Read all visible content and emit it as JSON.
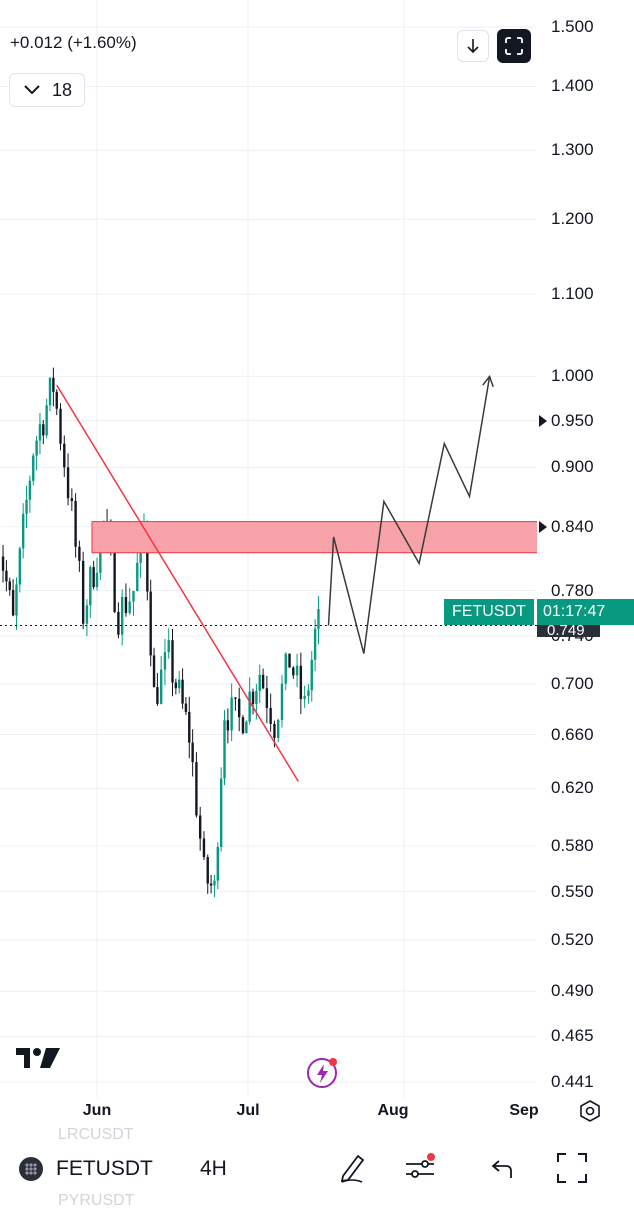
{
  "header": {
    "change": "+0.012 (+1.60%)",
    "interval_count": "18"
  },
  "toolbar": {
    "download_icon": "arrow-down-icon",
    "fullscreen_icon": "fullscreen-icon"
  },
  "price_axis": {
    "labels": [
      "1.500",
      "1.400",
      "1.300",
      "1.200",
      "1.100",
      "1.000",
      "0.950",
      "0.900",
      "0.840",
      "0.780",
      "0.749",
      "0.740",
      "0.700",
      "0.660",
      "0.620",
      "0.580",
      "0.550",
      "0.520",
      "0.490",
      "0.465",
      "0.441"
    ]
  },
  "symbol_tag": {
    "symbol": "FETUSDT",
    "countdown": "01:17:47",
    "price": "0.749"
  },
  "time_axis": {
    "labels": [
      "Jun",
      "Jul",
      "Aug",
      "Sep"
    ]
  },
  "bottom_bar": {
    "symbol": "FETUSDT",
    "interval": "4H",
    "ghost_above": "LRCUSDT",
    "ghost_below": "PYRUSDT"
  },
  "chart_data": {
    "type": "candlestick",
    "symbol": "FETUSDT",
    "interval": "4H",
    "current_price": 0.749,
    "ylim": [
      0.441,
      1.5
    ],
    "x_ticks": [
      "Jun",
      "Jul",
      "Aug",
      "Sep"
    ],
    "price_path_approx": [
      {
        "t": "May 12",
        "p": 0.86
      },
      {
        "t": "May 16",
        "p": 0.75
      },
      {
        "t": "May 20",
        "p": 0.92
      },
      {
        "t": "May 24",
        "p": 0.99
      },
      {
        "t": "May 27",
        "p": 0.88
      },
      {
        "t": "May 30",
        "p": 0.76
      },
      {
        "t": "Jun 3",
        "p": 0.84
      },
      {
        "t": "Jun 6",
        "p": 0.76
      },
      {
        "t": "Jun 9",
        "p": 0.78
      },
      {
        "t": "Jun 11",
        "p": 0.84
      },
      {
        "t": "Jun 13",
        "p": 0.69
      },
      {
        "t": "Jun 16",
        "p": 0.72
      },
      {
        "t": "Jun 20",
        "p": 0.66
      },
      {
        "t": "Jun 23",
        "p": 0.56
      },
      {
        "t": "Jun 25",
        "p": 0.55
      },
      {
        "t": "Jun 27",
        "p": 0.68
      },
      {
        "t": "Jun 30",
        "p": 0.67
      },
      {
        "t": "Jul 4",
        "p": 0.71
      },
      {
        "t": "Jul 7",
        "p": 0.67
      },
      {
        "t": "Jul 10",
        "p": 0.72
      },
      {
        "t": "Jul 13",
        "p": 0.68
      },
      {
        "t": "Jul 15",
        "p": 0.74
      },
      {
        "t": "Jul 16",
        "p": 0.749
      }
    ],
    "drawings": {
      "trendline": {
        "from": {
          "t": "May 24",
          "p": 0.99
        },
        "to": {
          "t": "Jul 11",
          "p": 0.625
        },
        "color": "#f23645"
      },
      "zone": {
        "from_t": "May 31",
        "to_t": "Sep 2",
        "top": 0.845,
        "bottom": 0.815,
        "color": "#f7a1a8"
      },
      "projection": [
        {
          "t": "Jul 17",
          "p": 0.749
        },
        {
          "t": "Jul 18",
          "p": 0.83
        },
        {
          "t": "Jul 24",
          "p": 0.725
        },
        {
          "t": "Jul 28",
          "p": 0.865
        },
        {
          "t": "Aug 4",
          "p": 0.805
        },
        {
          "t": "Aug 9",
          "p": 0.925
        },
        {
          "t": "Aug 14",
          "p": 0.87
        },
        {
          "t": "Aug 18",
          "p": 1.0
        }
      ]
    }
  }
}
